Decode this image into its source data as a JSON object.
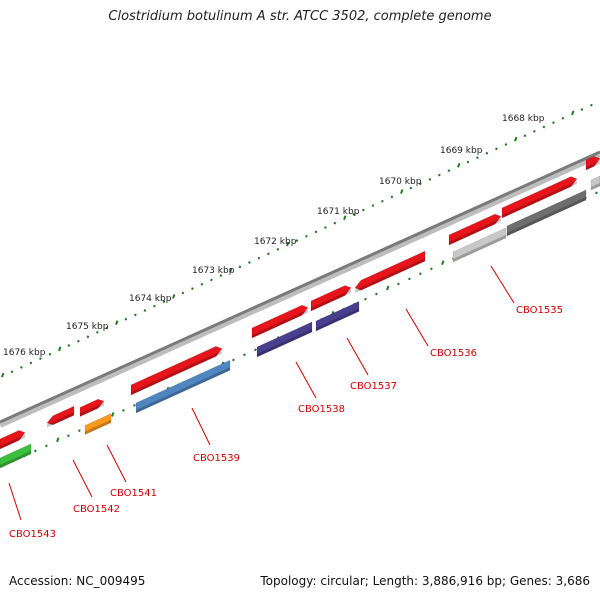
{
  "title": "Clostridium botulinum A str. ATCC 3502, complete genome",
  "footer": {
    "accession": "Accession: NC_009495",
    "summary": "Topology: circular; Length: 3,886,916 bp; Genes: 3,686"
  },
  "colors": {
    "backbone": "#7a7a7a",
    "tick": "#1f7a1f",
    "gene_label": "#cc0000",
    "red": "#e8141c",
    "indigo": "#4a3f8f",
    "steelblue": "#4f86c0",
    "orange": "#ff9a1a",
    "green": "#3cbf3c",
    "silver": "#c8c8c8",
    "darkgray": "#6e6e6e"
  },
  "scale_labels": [
    "1668 kbp",
    "1669 kbp",
    "1670 kbp",
    "1671 kbp",
    "1672 kbp",
    "1673 kbp",
    "1674 kbp",
    "1675 kbp",
    "1676 kbp"
  ],
  "gene_labels": [
    "CBO1535",
    "CBO1536",
    "CBO1537",
    "CBO1538",
    "CBO1539",
    "CBO1541",
    "CBO1542",
    "CBO1543"
  ]
}
